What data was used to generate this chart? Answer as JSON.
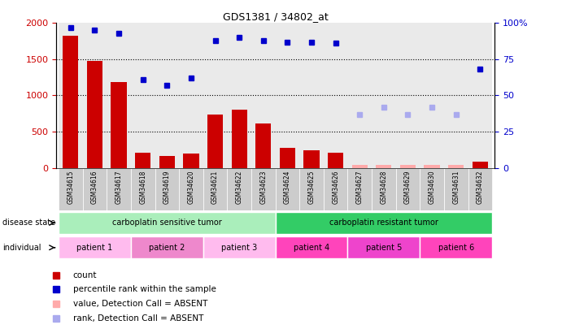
{
  "title": "GDS1381 / 34802_at",
  "samples": [
    "GSM34615",
    "GSM34616",
    "GSM34617",
    "GSM34618",
    "GSM34619",
    "GSM34620",
    "GSM34621",
    "GSM34622",
    "GSM34623",
    "GSM34624",
    "GSM34625",
    "GSM34626",
    "GSM34627",
    "GSM34628",
    "GSM34629",
    "GSM34630",
    "GSM34631",
    "GSM34632"
  ],
  "count_values": [
    1820,
    1480,
    1180,
    210,
    165,
    200,
    740,
    800,
    610,
    270,
    240,
    205,
    null,
    null,
    null,
    null,
    null,
    90
  ],
  "count_absent": [
    null,
    null,
    null,
    null,
    null,
    null,
    null,
    null,
    null,
    null,
    null,
    null,
    40,
    45,
    35,
    45,
    40,
    null
  ],
  "percentile_values": [
    97,
    95,
    93,
    61,
    57,
    62,
    88,
    90,
    88,
    87,
    87,
    86,
    null,
    null,
    null,
    null,
    null,
    68
  ],
  "percentile_absent": [
    null,
    null,
    null,
    null,
    null,
    null,
    null,
    null,
    null,
    null,
    null,
    null,
    37,
    42,
    37,
    42,
    37,
    null
  ],
  "count_color": "#cc0000",
  "count_absent_color": "#ffaaaa",
  "percentile_color": "#0000cc",
  "percentile_absent_color": "#aaaaee",
  "ylim_left": [
    0,
    2000
  ],
  "ylim_right": [
    0,
    100
  ],
  "yticks_left": [
    0,
    500,
    1000,
    1500,
    2000
  ],
  "yticks_right": [
    0,
    25,
    50,
    75,
    100
  ],
  "disease_state_groups": [
    {
      "label": "carboplatin sensitive tumor",
      "start": 0,
      "end": 8,
      "color": "#aaeebb"
    },
    {
      "label": "carboplatin resistant tumor",
      "start": 9,
      "end": 17,
      "color": "#33cc66"
    }
  ],
  "individual_groups": [
    {
      "label": "patient 1",
      "start": 0,
      "end": 2,
      "color": "#ffbbee"
    },
    {
      "label": "patient 2",
      "start": 3,
      "end": 5,
      "color": "#ee88cc"
    },
    {
      "label": "patient 3",
      "start": 6,
      "end": 8,
      "color": "#ffbbee"
    },
    {
      "label": "patient 4",
      "start": 9,
      "end": 11,
      "color": "#ff44bb"
    },
    {
      "label": "patient 5",
      "start": 12,
      "end": 14,
      "color": "#ee44cc"
    },
    {
      "label": "patient 6",
      "start": 15,
      "end": 17,
      "color": "#ff44bb"
    }
  ],
  "legend_items": [
    {
      "label": "count",
      "color": "#cc0000"
    },
    {
      "label": "percentile rank within the sample",
      "color": "#0000cc"
    },
    {
      "label": "value, Detection Call = ABSENT",
      "color": "#ffaaaa"
    },
    {
      "label": "rank, Detection Call = ABSENT",
      "color": "#aaaaee"
    }
  ],
  "xtick_bg_color": "#cccccc",
  "plot_bg_color": "#ffffff"
}
